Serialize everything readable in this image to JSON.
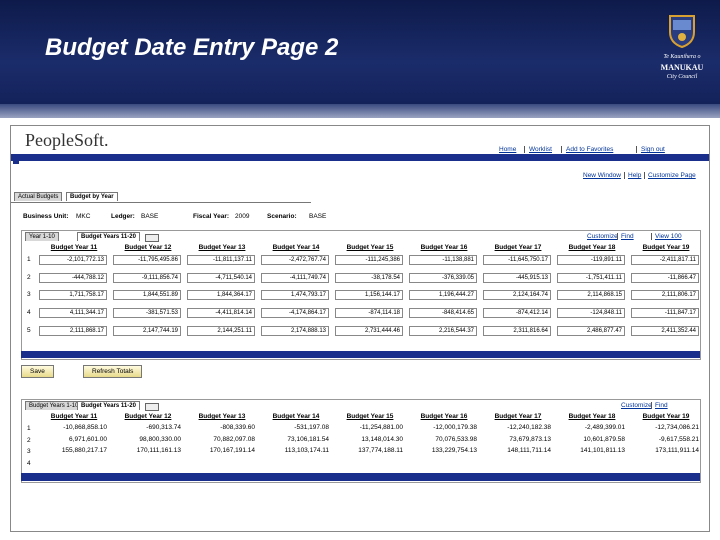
{
  "slide": {
    "title": "Budget Date Entry Page 2",
    "logo": [
      "Te Kaunihera o",
      "MANUKAU",
      "City Council"
    ]
  },
  "app": {
    "brand": "PeopleSoft.",
    "nav": [
      "Home",
      "Worklist",
      "Add to Favorites",
      "Sign out"
    ],
    "links": [
      "New Window",
      "Help",
      "Customize Page"
    ],
    "tabs": [
      "Actual Budgets",
      "Budget by Year"
    ],
    "fields": [
      {
        "label": "Business Unit:",
        "value": "MKC"
      },
      {
        "label": "Ledger:",
        "value": "BASE"
      },
      {
        "label": "Fiscal Year:",
        "value": "2009"
      },
      {
        "label": "Scenario:",
        "value": "BASE"
      }
    ],
    "buttons": [
      "Save",
      "Refresh Totals"
    ]
  },
  "grid1": {
    "tabs": [
      "Year 1-10",
      "Budget Years 11-20"
    ],
    "tools": [
      "Customize",
      "Find",
      "View 100"
    ],
    "columns": [
      "Budget Year 11",
      "Budget Year 12",
      "Budget Year 13",
      "Budget Year 14",
      "Budget Year 15",
      "Budget Year 16",
      "Budget Year 17",
      "Budget Year 18",
      "Budget Year 19"
    ],
    "rows": [
      {
        "num": "1",
        "cells": [
          "-2,101,772.13",
          "-11,795,495.86",
          "-11,811,137.11",
          "-2,472,767.74",
          "-111,245,386",
          "-11,138,881",
          "-11,645,750.17",
          "-119,891.11",
          "-2,411,817.11"
        ]
      },
      {
        "num": "2",
        "cells": [
          "-444,788.12",
          "-9,111,856.74",
          "-4,711,540.14",
          "-4,111,749.74",
          "-38,178.54",
          "-376,339.05",
          "-445,915.13",
          "-1,751,411.11",
          "-11,866.47"
        ]
      },
      {
        "num": "3",
        "cells": [
          "1,711,758.17",
          "1,844,551.89",
          "1,844,364.17",
          "1,474,793.17",
          "1,156,144.17",
          "1,196,444.27",
          "2,124,164.74",
          "2,114,868.15",
          "2,111,806.17"
        ]
      },
      {
        "num": "4",
        "cells": [
          "4,111,344.17",
          "-381,571.53",
          "-4,411,814.14",
          "-4,174,864.17",
          "-874,114.18",
          "-848,414.65",
          "-874,412.14",
          "-124,848.11",
          "-111,847.17"
        ]
      },
      {
        "num": "5",
        "cells": [
          "2,111,868.17",
          "2,147,744.19",
          "2,144,251.11",
          "2,174,888.13",
          "2,731,444.46",
          "2,216,544.37",
          "2,311,816.64",
          "2,486,877.47",
          "2,411,352.44"
        ]
      }
    ]
  },
  "grid2": {
    "tabs": [
      "Budget Years 1-10",
      "Budget Years 11-20"
    ],
    "tools": [
      "Customize",
      "Find"
    ],
    "columns": [
      "Budget Year 11",
      "Budget Year 12",
      "Budget Year 13",
      "Budget Year 14",
      "Budget Year 15",
      "Budget Year 16",
      "Budget Year 17",
      "Budget Year 18",
      "Budget Year 19"
    ],
    "rows": [
      {
        "num": "1",
        "cells": [
          "-10,868,858.10",
          "-690,313.74",
          "-808,339.60",
          "-531,197.08",
          "-11,254,881.00",
          "-12,000,179.38",
          "-12,240,182.38",
          "-2,489,399.01",
          "-12,734,086.21"
        ]
      },
      {
        "num": "2",
        "cells": [
          "6,971,601.00",
          "98,800,330.00",
          "70,882,097.08",
          "73,106,181.54",
          "13,148,014.30",
          "70,076,533.98",
          "73,679,873.13",
          "10,601,879.58",
          "-9,617,558.21"
        ]
      },
      {
        "num": "3",
        "cells": [
          "155,880,217.17",
          "170,111,161.13",
          "170,167,191.14",
          "113,103,174.11",
          "137,774,188.11",
          "133,229,754.13",
          "148,111,711.14",
          "141,101,811.13",
          "173,111,911.14"
        ]
      },
      {
        "num": "4",
        "cells": []
      }
    ]
  }
}
